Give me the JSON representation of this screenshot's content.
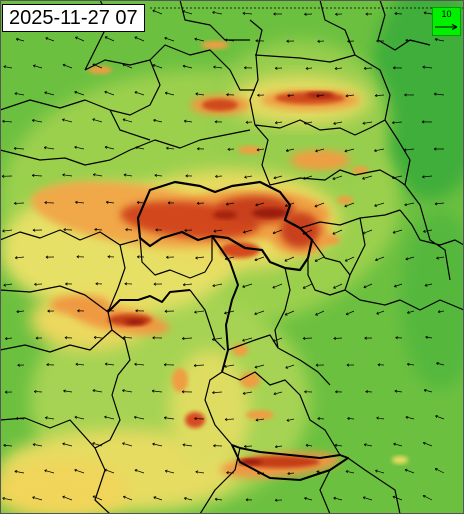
{
  "map": {
    "timestamp": "2025-11-27 07",
    "scale_arrow_value": "10",
    "colors": {
      "background_green": "#5fbf3c",
      "light_green": "#9ccf52",
      "yellow": "#f2e06a",
      "orange": "#f0a044",
      "red": "#d84a20",
      "dark_red": "#9c1e10",
      "boundary": "#000000",
      "arrow": "#000000",
      "scale_box": "#00f000"
    },
    "layers": [
      "wind-speed-shading",
      "wind-direction-arrows",
      "administrative-boundaries"
    ]
  }
}
